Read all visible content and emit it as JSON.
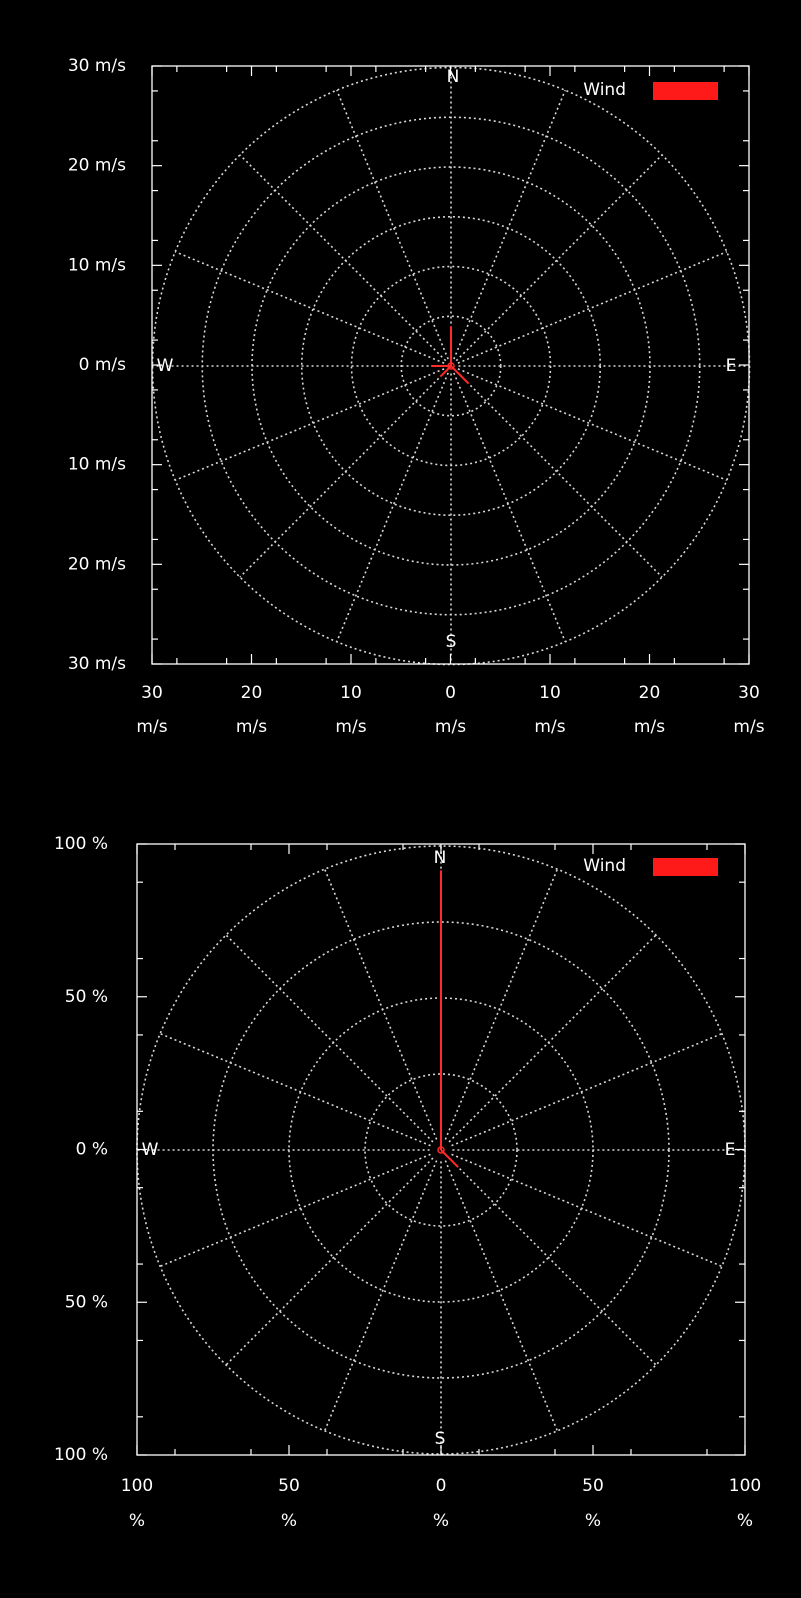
{
  "colors": {
    "background": "#000000",
    "grid": "#d8d8d8",
    "series": "#ff1a1a"
  },
  "chart_data": [
    {
      "type": "polar-vector",
      "title": "",
      "grid": true,
      "legend_position": "top-right",
      "legend_label": "Wind",
      "compass": {
        "n": "N",
        "s": "S",
        "e": "E",
        "w": "W"
      },
      "y_ticks": [
        "30 m/s",
        "20 m/s",
        "10 m/s",
        "0 m/s",
        "10 m/s",
        "20 m/s",
        "30 m/s"
      ],
      "x_ticks": [
        {
          "value": "30",
          "unit": "m/s"
        },
        {
          "value": "20",
          "unit": "m/s"
        },
        {
          "value": "10",
          "unit": "m/s"
        },
        {
          "value": "0",
          "unit": "m/s"
        },
        {
          "value": "10",
          "unit": "m/s"
        },
        {
          "value": "20",
          "unit": "m/s"
        },
        {
          "value": "30",
          "unit": "m/s"
        }
      ],
      "range": [
        -30,
        30
      ],
      "radial_ring_values": [
        5,
        10,
        15,
        20,
        25,
        30
      ],
      "spoke_count": 16,
      "series": [
        {
          "name": "Wind",
          "vectors": [
            {
              "direction_deg": 0,
              "magnitude": 4
            },
            {
              "direction_deg": 135,
              "magnitude": 2.5
            },
            {
              "direction_deg": 225,
              "magnitude": 1.5
            },
            {
              "direction_deg": 270,
              "magnitude": 2
            }
          ]
        }
      ]
    },
    {
      "type": "polar-vector",
      "title": "",
      "grid": true,
      "legend_position": "top-right",
      "legend_label": "Wind",
      "compass": {
        "n": "N",
        "s": "S",
        "e": "E",
        "w": "W"
      },
      "y_ticks": [
        "100 %",
        "50 %",
        "0 %",
        "50 %",
        "100 %"
      ],
      "x_ticks": [
        {
          "value": "100",
          "unit": "%"
        },
        {
          "value": "50",
          "unit": "%"
        },
        {
          "value": "0",
          "unit": "%"
        },
        {
          "value": "50",
          "unit": "%"
        },
        {
          "value": "100",
          "unit": "%"
        }
      ],
      "range": [
        -100,
        100
      ],
      "radial_ring_values": [
        25,
        50,
        75,
        100
      ],
      "spoke_count": 16,
      "series": [
        {
          "name": "Wind",
          "vectors": [
            {
              "direction_deg": 0,
              "magnitude": 92
            },
            {
              "direction_deg": 135,
              "magnitude": 8
            }
          ]
        }
      ]
    }
  ]
}
